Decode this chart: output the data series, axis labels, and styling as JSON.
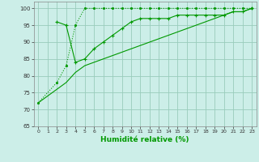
{
  "xlabel": "Humidité relative (%)",
  "xlim": [
    -0.5,
    23.5
  ],
  "ylim": [
    65,
    102
  ],
  "yticks": [
    65,
    70,
    75,
    80,
    85,
    90,
    95,
    100
  ],
  "xticks": [
    0,
    1,
    2,
    3,
    4,
    5,
    6,
    7,
    8,
    9,
    10,
    11,
    12,
    13,
    14,
    15,
    16,
    17,
    18,
    19,
    20,
    21,
    22,
    23
  ],
  "bg_color": "#cceee8",
  "grid_color": "#99ccbb",
  "line_color": "#009900",
  "line1_x": [
    0,
    2,
    3,
    4,
    5,
    6,
    7,
    8,
    9,
    10,
    11,
    12,
    13,
    14,
    15,
    16,
    17,
    18,
    19,
    20,
    21,
    22,
    23
  ],
  "line1_y": [
    72,
    78,
    83,
    95,
    100,
    100,
    100,
    100,
    100,
    100,
    100,
    100,
    100,
    100,
    100,
    100,
    100,
    100,
    100,
    100,
    100,
    100,
    100
  ],
  "line2_x": [
    2,
    3,
    4,
    5,
    6,
    7,
    8,
    9,
    10,
    11,
    12,
    13,
    14,
    15,
    16,
    17,
    18,
    19,
    20,
    21,
    22,
    23
  ],
  "line2_y": [
    96,
    95,
    84,
    85,
    88,
    90,
    92,
    94,
    96,
    97,
    97,
    97,
    97,
    98,
    98,
    98,
    98,
    98,
    98,
    99,
    99,
    100
  ],
  "line3_x": [
    0,
    1,
    2,
    3,
    4,
    5,
    6,
    7,
    8,
    9,
    10,
    11,
    12,
    13,
    14,
    15,
    16,
    17,
    18,
    19,
    20,
    21,
    22,
    23
  ],
  "line3_y": [
    72,
    74,
    76,
    78,
    81,
    83,
    84,
    85,
    86,
    87,
    88,
    89,
    90,
    91,
    92,
    93,
    94,
    95,
    96,
    97,
    98,
    99,
    99,
    100
  ]
}
